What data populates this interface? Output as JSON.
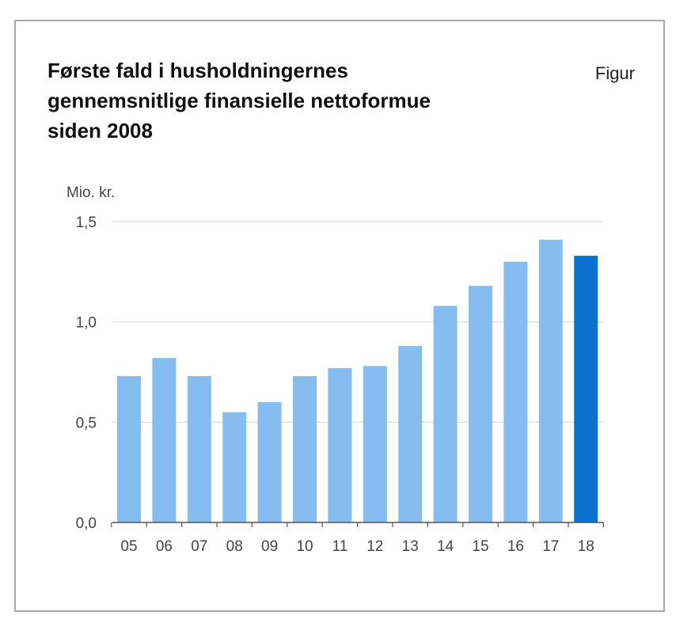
{
  "figure": {
    "title_lines": [
      "Første fald i husholdningernes",
      "gennemsnitlige finansielle nettoformue",
      "siden 2008"
    ],
    "tag": "Figur"
  },
  "chart_data": {
    "type": "bar",
    "title": "Første fald i husholdningernes gennemsnitlige finansielle nettoformue siden 2008",
    "ylabel": "Mio. kr.",
    "xlabel": "",
    "categories": [
      "05",
      "06",
      "07",
      "08",
      "09",
      "10",
      "11",
      "12",
      "13",
      "14",
      "15",
      "16",
      "17",
      "18"
    ],
    "values": [
      0.73,
      0.82,
      0.73,
      0.55,
      0.6,
      0.73,
      0.77,
      0.78,
      0.88,
      1.08,
      1.18,
      1.3,
      1.41,
      1.33
    ],
    "ylim": [
      0,
      1.5
    ],
    "yticks": [
      0.0,
      0.5,
      1.0,
      1.5
    ],
    "ytick_labels": [
      "0,0",
      "0,5",
      "1,0",
      "1,5"
    ],
    "grid": true,
    "colors": {
      "default": "#85bdf1",
      "highlight": "#0a73d0"
    },
    "highlight_category": "18"
  }
}
